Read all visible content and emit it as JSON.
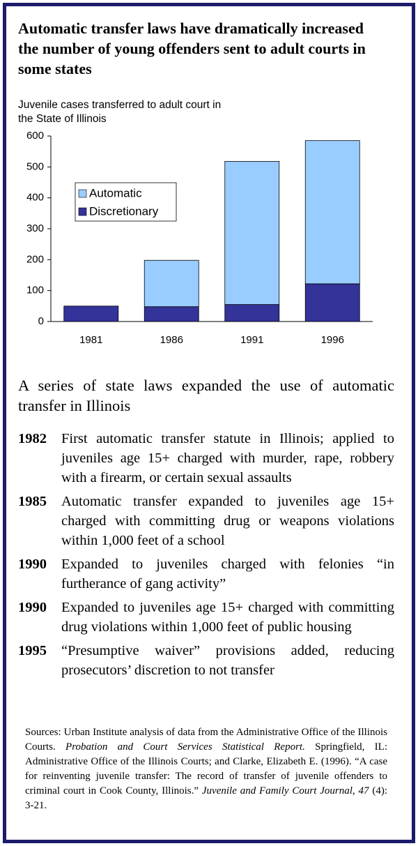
{
  "title": "Automatic transfer laws have dramatically increased the number of young offenders sent to adult courts in some states",
  "chart_data": {
    "type": "stacked_bar",
    "y_label": "Juvenile cases transferred to adult court in the State of Illinois",
    "categories": [
      "1981",
      "1986",
      "1991",
      "1996"
    ],
    "series": [
      {
        "name": "Automatic",
        "color": "#99ccff",
        "values": [
          0,
          150,
          463,
          463
        ]
      },
      {
        "name": "Discretionary",
        "color": "#333399",
        "values": [
          50,
          48,
          55,
          122
        ]
      }
    ],
    "ylim": [
      0,
      600
    ],
    "yticks": [
      0,
      100,
      200,
      300,
      400,
      500,
      600
    ],
    "grid": false
  },
  "section_heading": "A series of state laws expanded the use of automatic transfer in Illinois",
  "events": [
    {
      "year": "1982",
      "text": "First automatic transfer statute in Illinois; applied to juveniles age 15+ charged with murder, rape, robbery with a firearm, or certain sexual assaults"
    },
    {
      "year": "1985",
      "text": "Automatic transfer expanded to juveniles age 15+ charged with committing drug or weapons violations within 1,000 feet of a school"
    },
    {
      "year": "1990",
      "text": "Expanded to juveniles charged with felonies “in furtherance of gang activity”"
    },
    {
      "year": "1990",
      "text": "Expanded to juveniles age 15+ charged with committing drug violations within 1,000 feet of public housing"
    },
    {
      "year": "1995",
      "text": "“Presumptive waiver” provisions added, reducing prosecutors’ discretion to not transfer"
    }
  ],
  "sources": [
    {
      "text": "Sources: Urban Institute analysis of data from the Administrative Office of the Illinois Courts. ",
      "italic": false
    },
    {
      "text": "Probation and Court Services Statistical Report.",
      "italic": true
    },
    {
      "text": " Springfield, IL: Administrative Office of the Illinois Courts; and Clarke, Elizabeth E. (1996). “A case for reinventing juvenile transfer: The record of transfer of juvenile offenders to criminal court in Cook County, Illinois.” ",
      "italic": false
    },
    {
      "text": "Juvenile and Family Court Journal, 47",
      "italic": true
    },
    {
      "text": " (4): 3-21.",
      "italic": false
    }
  ]
}
